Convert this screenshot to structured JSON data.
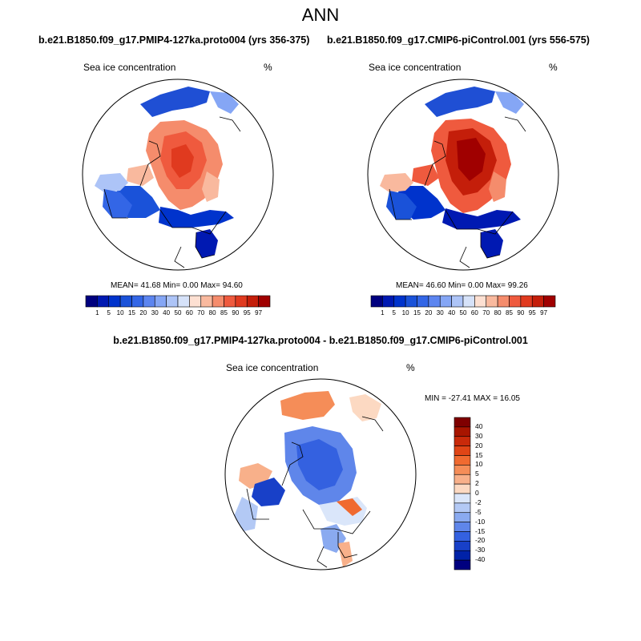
{
  "title": "ANN",
  "panels": [
    {
      "case": "b.e21.B1850.f09_g17.PMIP4-127ka.proto004 (yrs 356-375)",
      "field": "Sea ice concentration",
      "units": "%",
      "stats": "MEAN=  41.68  Min=   0.00  Max=  94.60"
    },
    {
      "case": "b.e21.B1850.f09_g17.CMIP6-piControl.001 (yrs 556-575)",
      "field": "Sea ice concentration",
      "units": "%",
      "stats": "MEAN=  46.60  Min=   0.00  Max=  99.26"
    }
  ],
  "diff": {
    "case": "b.e21.B1850.f09_g17.PMIP4-127ka.proto004 - b.e21.B1850.f09_g17.CMIP6-piControl.001",
    "field": "Sea ice concentration",
    "units": "%",
    "minmax": "MIN = -27.41 MAX =  16.05"
  },
  "colorbar_abs": {
    "labels": [
      "1",
      "5",
      "10",
      "15",
      "20",
      "30",
      "40",
      "50",
      "60",
      "70",
      "80",
      "85",
      "90",
      "95",
      "97"
    ],
    "colors": [
      "#00007f",
      "#0019b2",
      "#0033cc",
      "#1a52d9",
      "#3366e6",
      "#5c85f0",
      "#85a6f5",
      "#adc4f7",
      "#d6e2f9",
      "#fde0d2",
      "#f9b99e",
      "#f58c6c",
      "#ef5a3e",
      "#e03a1f",
      "#c41e0a",
      "#a00000"
    ]
  },
  "colorbar_diff": {
    "labels": [
      "40",
      "30",
      "20",
      "15",
      "10",
      "5",
      "2",
      "0",
      "-2",
      "-5",
      "-10",
      "-15",
      "-20",
      "-30",
      "-40"
    ],
    "colors": [
      "#7f0000",
      "#a81500",
      "#c92a0a",
      "#e04516",
      "#f06a30",
      "#f58d58",
      "#f8b08a",
      "#fcd9c2",
      "#dae6fa",
      "#b3c9f5",
      "#8aaaf0",
      "#5f86ea",
      "#3461e0",
      "#1840c8",
      "#0022a8",
      "#00007f"
    ]
  }
}
